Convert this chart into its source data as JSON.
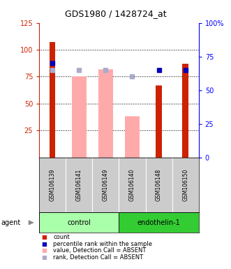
{
  "title": "GDS1980 / 1428724_at",
  "samples": [
    "GSM106139",
    "GSM106141",
    "GSM106149",
    "GSM106140",
    "GSM106148",
    "GSM106150"
  ],
  "groups": [
    {
      "label": "control",
      "indices": [
        0,
        1,
        2
      ],
      "color": "#aaffaa"
    },
    {
      "label": "endothelin-1",
      "indices": [
        3,
        4,
        5
      ],
      "color": "#33cc33"
    }
  ],
  "count_values": [
    107,
    0,
    0,
    0,
    67,
    87
  ],
  "count_color": "#cc2200",
  "value_absent": [
    0,
    75,
    82,
    38,
    0,
    0
  ],
  "value_absent_color": "#ffaaaa",
  "rank_present_values": [
    70,
    0,
    0,
    0,
    65,
    65
  ],
  "rank_present_color": "#0000bb",
  "rank_absent_values": [
    65,
    65,
    65,
    60,
    0,
    0
  ],
  "rank_absent_color": "#aaaacc",
  "left_ylim": [
    0,
    125
  ],
  "right_ylim": [
    0,
    100
  ],
  "left_yticks": [
    25,
    50,
    75,
    100,
    125
  ],
  "right_yticks": [
    0,
    25,
    50,
    75,
    100
  ],
  "right_yticklabels": [
    "0",
    "25",
    "50",
    "75",
    "100%"
  ],
  "background_color": "#ffffff",
  "plot_bg_color": "#ffffff",
  "sample_bg_color": "#cccccc",
  "legend_items": [
    {
      "label": "count",
      "color": "#cc2200"
    },
    {
      "label": "percentile rank within the sample",
      "color": "#0000bb"
    },
    {
      "label": "value, Detection Call = ABSENT",
      "color": "#ffaaaa"
    },
    {
      "label": "rank, Detection Call = ABSENT",
      "color": "#aaaacc"
    }
  ]
}
